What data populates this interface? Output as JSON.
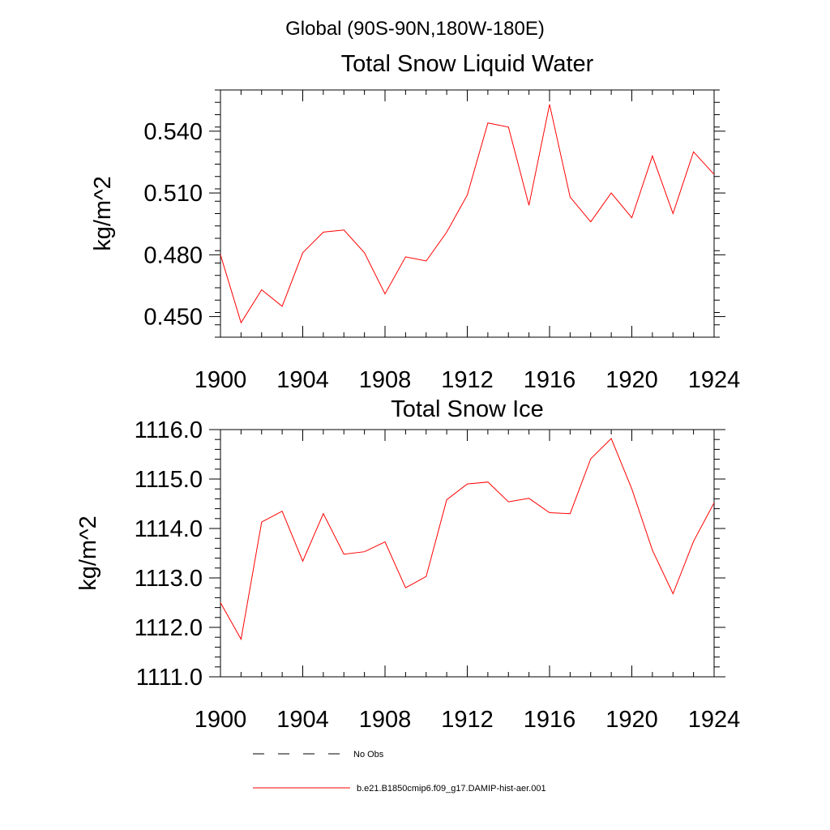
{
  "figure": {
    "region_title": "Global (90S-90N,180W-180E)",
    "colors": {
      "series": "#ff0000",
      "obs": "#000000",
      "axis": "#000000"
    }
  },
  "chart_data": [
    {
      "type": "line",
      "title": "Total Snow Liquid Water",
      "xlabel": "",
      "ylabel": "kg/m^2",
      "xlim": [
        1900,
        1924
      ],
      "ylim": [
        0.44,
        0.56
      ],
      "xticks": [
        1900,
        1904,
        1908,
        1912,
        1916,
        1920,
        1924
      ],
      "xtick_labels": [
        "1900",
        "1904",
        "1908",
        "1912",
        "1916",
        "1920",
        "1924"
      ],
      "yticks": [
        0.45,
        0.48,
        0.51,
        0.54
      ],
      "ytick_labels": [
        "0.450",
        "0.480",
        "0.510",
        "0.540"
      ],
      "x": [
        1900,
        1901,
        1902,
        1903,
        1904,
        1905,
        1906,
        1907,
        1908,
        1909,
        1910,
        1911,
        1912,
        1913,
        1914,
        1915,
        1916,
        1917,
        1918,
        1919,
        1920,
        1921,
        1922,
        1923,
        1924
      ],
      "series": [
        {
          "name": "b.e21.B1850cmip6.f09_g17.DAMIP-hist-aer.001",
          "values": [
            0.48,
            0.447,
            0.463,
            0.455,
            0.481,
            0.491,
            0.492,
            0.481,
            0.461,
            0.479,
            0.477,
            0.491,
            0.509,
            0.544,
            0.542,
            0.504,
            0.553,
            0.508,
            0.496,
            0.51,
            0.498,
            0.528,
            0.5,
            0.53,
            0.519
          ]
        }
      ]
    },
    {
      "type": "line",
      "title": "Total Snow Ice",
      "xlabel": "",
      "ylabel": "kg/m^2",
      "xlim": [
        1900,
        1924
      ],
      "ylim": [
        1111.0,
        1116.0
      ],
      "xticks": [
        1900,
        1904,
        1908,
        1912,
        1916,
        1920,
        1924
      ],
      "xtick_labels": [
        "1900",
        "1904",
        "1908",
        "1912",
        "1916",
        "1920",
        "1924"
      ],
      "yticks": [
        1111.0,
        1112.0,
        1113.0,
        1114.0,
        1115.0,
        1116.0
      ],
      "ytick_labels": [
        "1111.0",
        "1112.0",
        "1113.0",
        "1114.0",
        "1115.0",
        "1116.0"
      ],
      "x": [
        1900,
        1901,
        1902,
        1903,
        1904,
        1905,
        1906,
        1907,
        1908,
        1909,
        1910,
        1911,
        1912,
        1913,
        1914,
        1915,
        1916,
        1917,
        1918,
        1919,
        1920,
        1921,
        1922,
        1923,
        1924
      ],
      "series": [
        {
          "name": "b.e21.B1850cmip6.f09_g17.DAMIP-hist-aer.001",
          "values": [
            1112.5,
            1111.76,
            1114.13,
            1114.35,
            1113.34,
            1114.3,
            1113.48,
            1113.53,
            1113.73,
            1112.8,
            1113.03,
            1114.58,
            1114.9,
            1114.94,
            1114.54,
            1114.61,
            1114.32,
            1114.3,
            1115.41,
            1115.82,
            1114.8,
            1113.56,
            1112.68,
            1113.74,
            1114.52
          ]
        }
      ]
    }
  ],
  "legend": {
    "placement": "bottom-center",
    "entries": [
      {
        "label": "No Obs",
        "style": "dashed",
        "color": "#000000"
      },
      {
        "label": "b.e21.B1850cmip6.f09_g17.DAMIP-hist-aer.001",
        "style": "solid",
        "color": "#ff0000"
      }
    ]
  }
}
